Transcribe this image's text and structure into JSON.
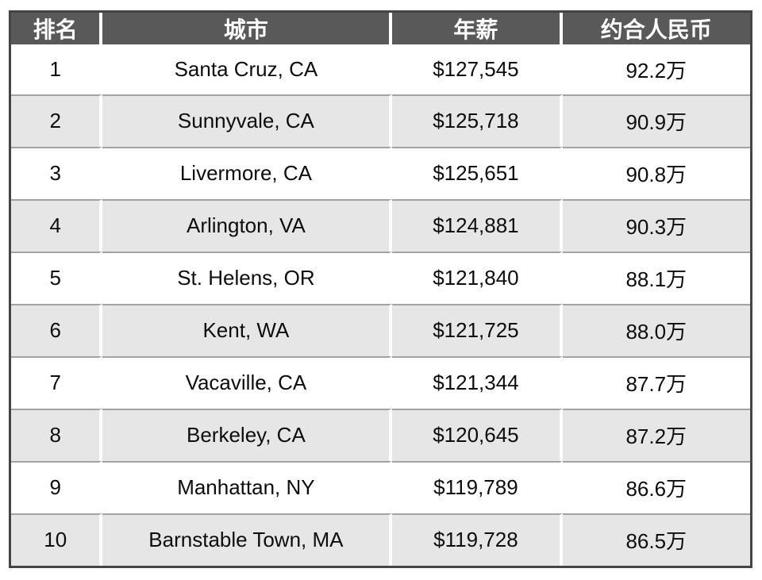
{
  "chart_data": {
    "type": "table",
    "columns": [
      "排名",
      "城市",
      "年薪",
      "约合人民币"
    ],
    "rows": [
      [
        "1",
        "Santa Cruz, CA",
        "$127,545",
        "92.2万"
      ],
      [
        "2",
        "Sunnyvale, CA",
        "$125,718",
        "90.9万"
      ],
      [
        "3",
        "Livermore, CA",
        "$125,651",
        "90.8万"
      ],
      [
        "4",
        "Arlington, VA",
        "$124,881",
        "90.3万"
      ],
      [
        "5",
        "St. Helens, OR",
        "$121,840",
        "88.1万"
      ],
      [
        "6",
        "Kent, WA",
        "$121,725",
        "88.0万"
      ],
      [
        "7",
        "Vacaville, CA",
        "$121,344",
        "87.7万"
      ],
      [
        "8",
        "Berkeley, CA",
        "$120,645",
        "87.2万"
      ],
      [
        "9",
        "Manhattan, NY",
        "$119,789",
        "86.6万"
      ],
      [
        "10",
        "Barnstable Town, MA",
        "$119,728",
        "86.5万"
      ]
    ],
    "layout": {
      "grid": "banded-rows",
      "legend": "none"
    }
  },
  "colors": {
    "header_bg": "#595959",
    "header_text": "#ffffff",
    "row_bg": "#ffffff",
    "row_alt_bg": "#e7e6e6",
    "outer_border": "#454545",
    "row_divider": "#a3a3a3",
    "column_divider": "#ffffff",
    "body_text": "#0d0d0d"
  }
}
